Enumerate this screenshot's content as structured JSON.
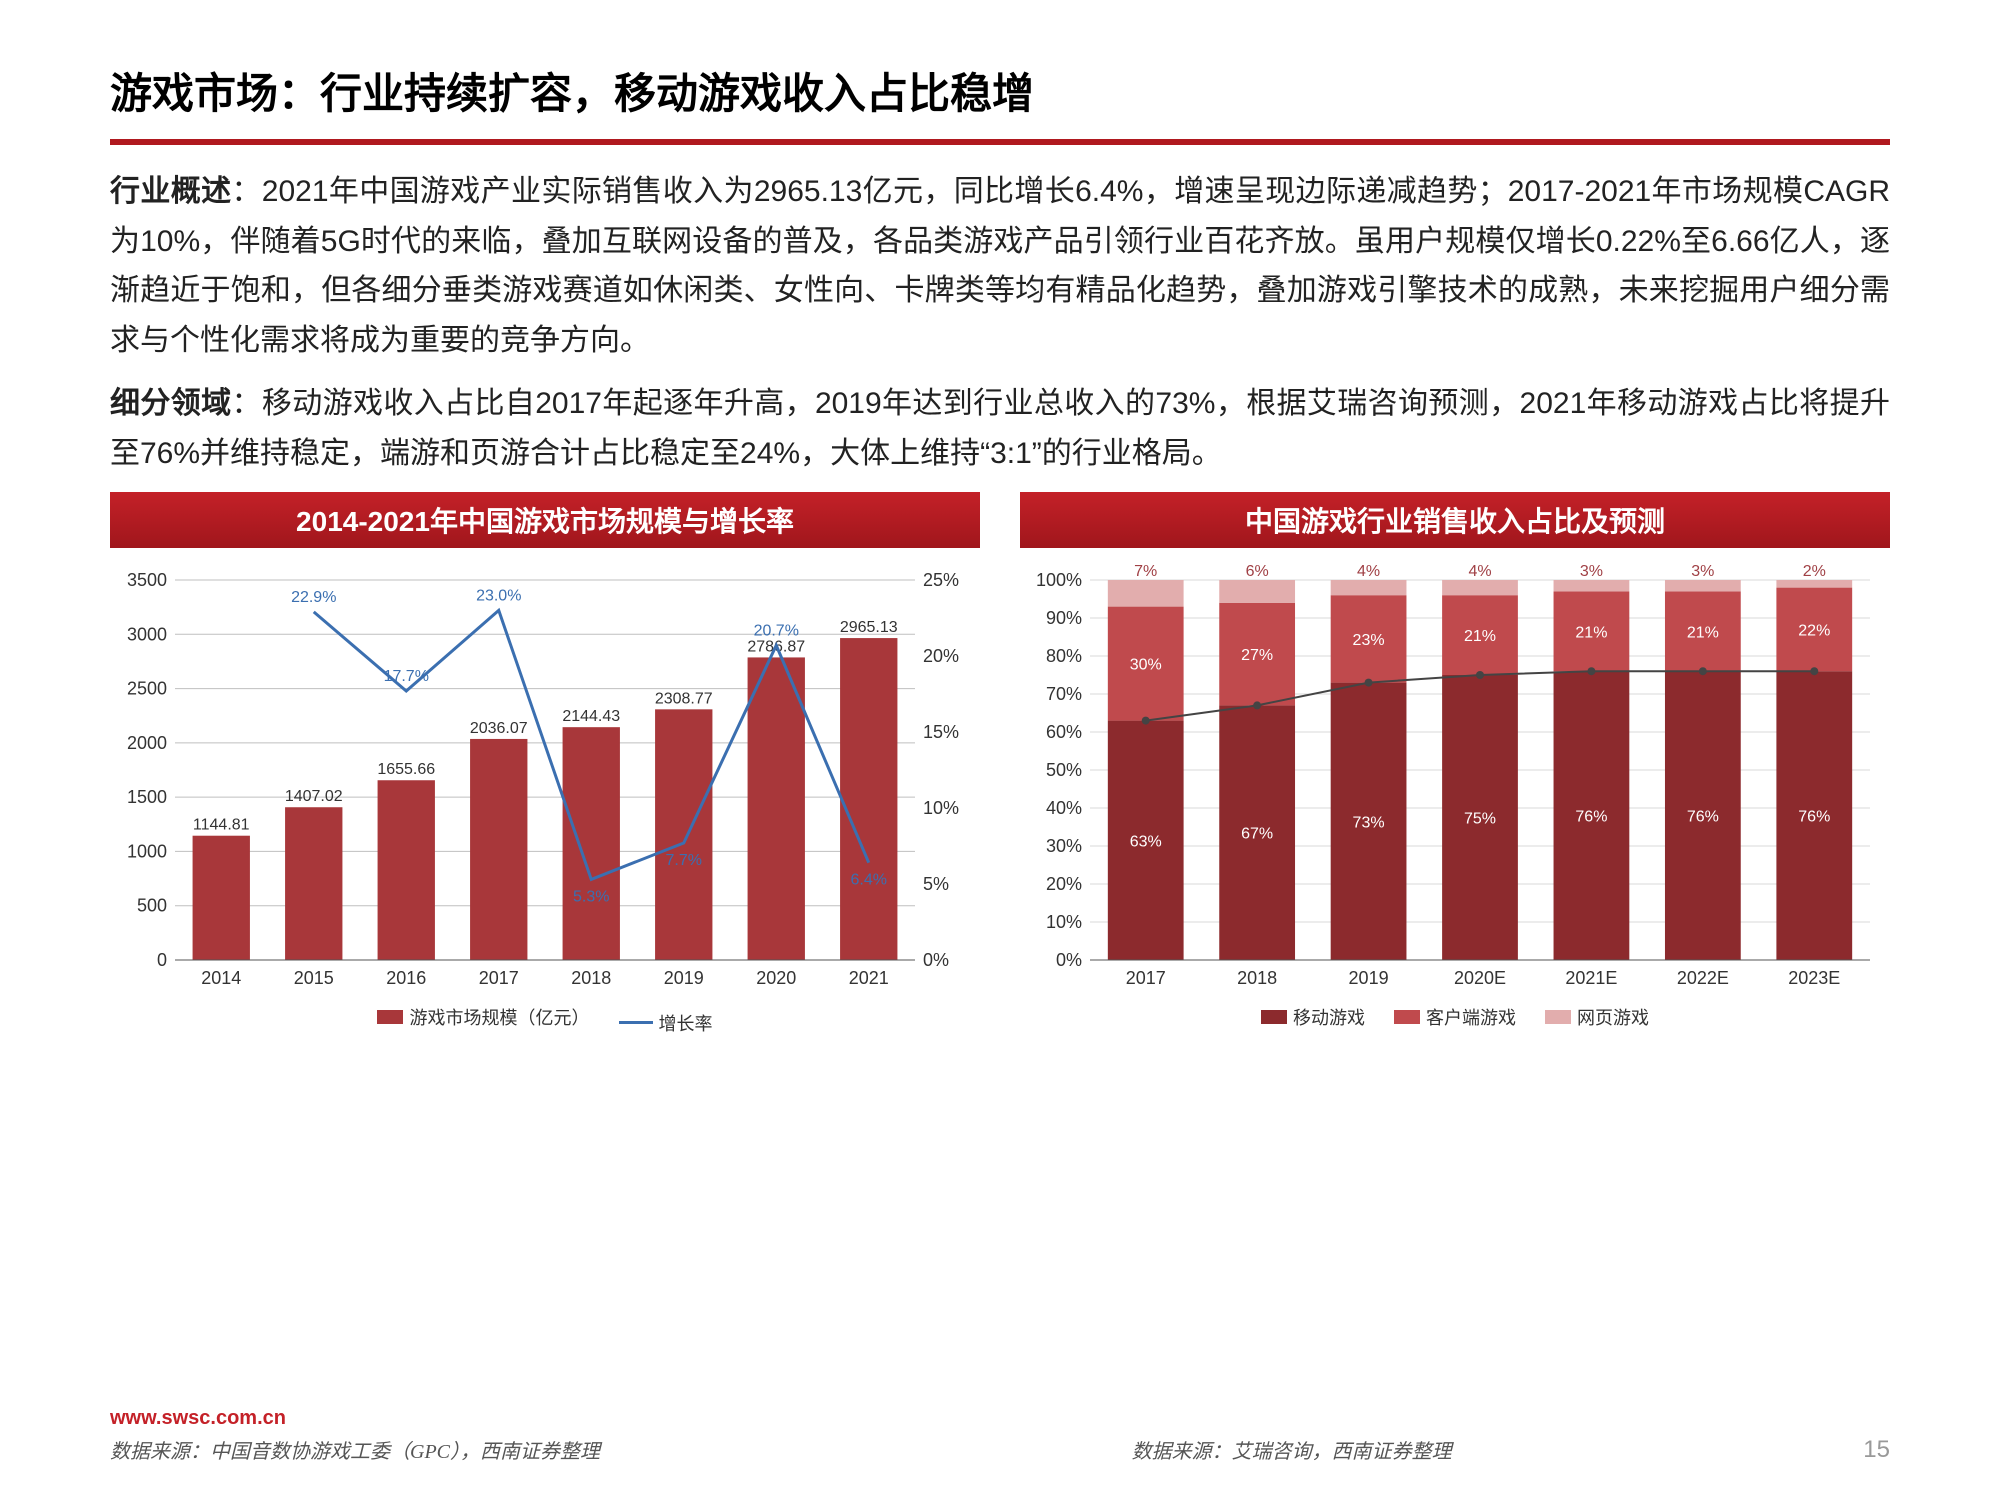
{
  "title": "游戏市场：行业持续扩容，移动游戏收入占比稳增",
  "para1_label": "行业概述",
  "para1_body": "：2021年中国游戏产业实际销售收入为2965.13亿元，同比增长6.4%，增速呈现边际递减趋势；2017-2021年市场规模CAGR为10%，伴随着5G时代的来临，叠加互联网设备的普及，各品类游戏产品引领行业百花齐放。虽用户规模仅增长0.22%至6.66亿人，逐渐趋近于饱和，但各细分垂类游戏赛道如休闲类、女性向、卡牌类等均有精品化趋势，叠加游戏引擎技术的成熟，未来挖掘用户细分需求与个性化需求将成为重要的竞争方向。",
  "para2_label": "细分领域",
  "para2_body": "：移动游戏收入占比自2017年起逐年升高，2019年达到行业总收入的73%，根据艾瑞咨询预测，2021年移动游戏占比将提升至76%并维持稳定，端游和页游合计占比稳定至24%，大体上维持“3:1”的行业格局。",
  "chart1": {
    "title": "2014-2021年中国游戏市场规模与增长率",
    "years": [
      "2014",
      "2015",
      "2016",
      "2017",
      "2018",
      "2019",
      "2020",
      "2021"
    ],
    "values": [
      1144.81,
      1407.02,
      1655.66,
      2036.07,
      2144.43,
      2308.77,
      2786.87,
      2965.13
    ],
    "value_labels": [
      "1144.81",
      "1407.02",
      "1655.66",
      "2036.07",
      "2144.43",
      "2308.77",
      "2786.87",
      "2965.13"
    ],
    "growth": [
      null,
      22.9,
      17.7,
      23.0,
      5.3,
      7.7,
      20.7,
      6.4
    ],
    "growth_labels": [
      "",
      "22.9%",
      "17.7%",
      "23.0%",
      "5.3%",
      "7.7%",
      "20.7%",
      "6.4%"
    ],
    "y1_max": 3500,
    "y1_step": 500,
    "y2_max": 25,
    "y2_step": 5,
    "bar_color": "#a8373a",
    "line_color": "#3b6fb0",
    "grid_color": "#bfbfbf",
    "legend_bar": "游戏市场规模（亿元）",
    "legend_line": "增长率",
    "source": "数据来源：中国音数协游戏工委（GPC），西南证券整理"
  },
  "chart2": {
    "title": "中国游戏行业销售收入占比及预测",
    "years": [
      "2017",
      "2018",
      "2019",
      "2020E",
      "2021E",
      "2022E",
      "2023E"
    ],
    "mobile": [
      63,
      67,
      73,
      75,
      76,
      76,
      76
    ],
    "client": [
      30,
      27,
      23,
      21,
      21,
      21,
      22
    ],
    "web": [
      7,
      6,
      4,
      4,
      3,
      3,
      2
    ],
    "y_max": 100,
    "y_step": 10,
    "colors": {
      "mobile": "#8c2a2d",
      "client": "#c04a4d",
      "web": "#e2adad"
    },
    "legend": {
      "mobile": "移动游戏",
      "client": "客户端游戏",
      "web": "网页游戏"
    },
    "source": "数据来源：艾瑞咨询，西南证券整理",
    "line_color": "#444"
  },
  "url": "www.swsc.com.cn",
  "page": "15"
}
